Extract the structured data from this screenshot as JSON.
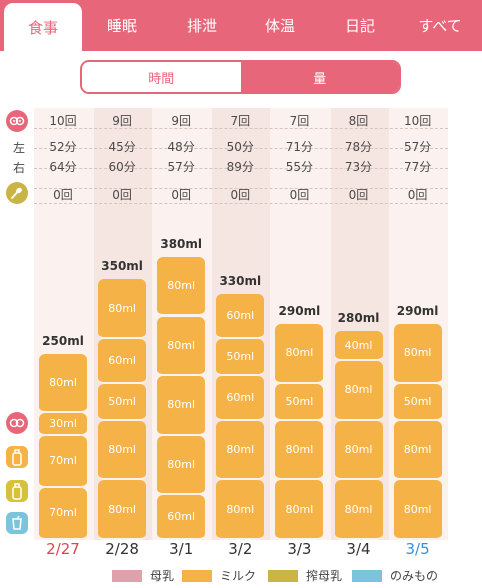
{
  "tabs": [
    {
      "label": "食事",
      "active": true
    },
    {
      "label": "睡眠",
      "active": false
    },
    {
      "label": "排泄",
      "active": false
    },
    {
      "label": "体温",
      "active": false
    },
    {
      "label": "日記",
      "active": false
    },
    {
      "label": "すべて",
      "active": false
    }
  ],
  "segmented": {
    "left": "時間",
    "right": "量",
    "selected": "量"
  },
  "side_labels": {
    "left": "左",
    "right": "右"
  },
  "icons": {
    "breast": "breast-icon",
    "spoon": "spoon-icon",
    "bottle_milk": "bottle-icon",
    "bottle_expressed": "expressed-milk-bottle-icon",
    "cup": "cup-icon"
  },
  "days": [
    {
      "date": "2/27",
      "kind": "sun",
      "breast_count": "10回",
      "left": "52分",
      "right": "64分",
      "baby_food": "0回",
      "total": "250ml",
      "segments": [
        "70ml",
        "70ml",
        "30ml",
        "80ml"
      ],
      "amounts": [
        70,
        70,
        30,
        80
      ]
    },
    {
      "date": "2/28",
      "kind": "normal",
      "breast_count": "9回",
      "left": "45分",
      "right": "60分",
      "baby_food": "0回",
      "total": "350ml",
      "segments": [
        "80ml",
        "80ml",
        "50ml",
        "60ml",
        "80ml"
      ],
      "amounts": [
        80,
        80,
        50,
        60,
        80
      ]
    },
    {
      "date": "3/1",
      "kind": "normal",
      "breast_count": "9回",
      "left": "48分",
      "right": "57分",
      "baby_food": "0回",
      "total": "380ml",
      "segments": [
        "60ml",
        "80ml",
        "80ml",
        "80ml",
        "80ml"
      ],
      "amounts": [
        60,
        80,
        80,
        80,
        80
      ]
    },
    {
      "date": "3/2",
      "kind": "normal",
      "breast_count": "7回",
      "left": "50分",
      "right": "89分",
      "baby_food": "0回",
      "total": "330ml",
      "segments": [
        "80ml",
        "80ml",
        "60ml",
        "50ml",
        "60ml"
      ],
      "amounts": [
        80,
        80,
        60,
        50,
        60
      ]
    },
    {
      "date": "3/3",
      "kind": "normal",
      "breast_count": "7回",
      "left": "71分",
      "right": "55分",
      "baby_food": "0回",
      "total": "290ml",
      "segments": [
        "80ml",
        "80ml",
        "50ml",
        "80ml"
      ],
      "amounts": [
        80,
        80,
        50,
        80
      ]
    },
    {
      "date": "3/4",
      "kind": "normal",
      "breast_count": "8回",
      "left": "78分",
      "right": "73分",
      "baby_food": "0回",
      "total": "280ml",
      "segments": [
        "80ml",
        "80ml",
        "80ml",
        "40ml"
      ],
      "amounts": [
        80,
        80,
        80,
        40
      ]
    },
    {
      "date": "3/5",
      "kind": "sat",
      "breast_count": "10回",
      "left": "57分",
      "right": "77分",
      "baby_food": "0回",
      "total": "290ml",
      "segments": [
        "80ml",
        "80ml",
        "50ml",
        "80ml"
      ],
      "amounts": [
        80,
        80,
        50,
        80
      ]
    }
  ],
  "legend": [
    {
      "label": "母乳",
      "color": "#dea1ae"
    },
    {
      "label": "ミルク",
      "color": "#f5b347"
    },
    {
      "label": "搾母乳",
      "color": "#c9b444"
    },
    {
      "label": "のみもの",
      "color": "#7cc4dc"
    }
  ],
  "colors": {
    "accent": "#e8667a",
    "milk": "#f5b347",
    "sunday": "#d9464f",
    "saturday": "#3a8fd0"
  },
  "chart_data": {
    "type": "bar",
    "stacked": true,
    "categories": [
      "2/27",
      "2/28",
      "3/1",
      "3/2",
      "3/3",
      "3/4",
      "3/5"
    ],
    "totals": [
      250,
      350,
      380,
      330,
      290,
      280,
      290
    ],
    "unit": "ml"
  }
}
